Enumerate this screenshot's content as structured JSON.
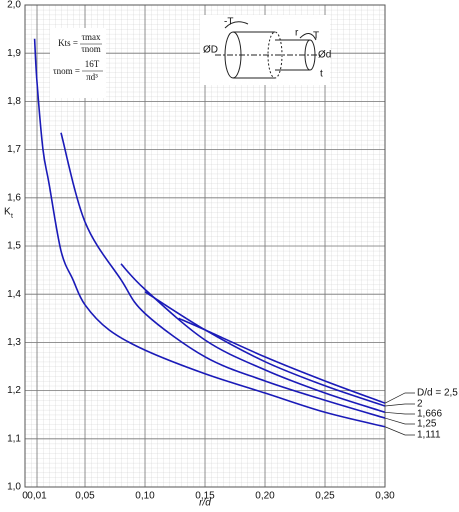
{
  "chart_data": {
    "type": "line",
    "x_label": "r/d",
    "y_label": "K",
    "y_label_sub": "t",
    "formula": {
      "lhs1": "Kts =",
      "num1": "τmax",
      "den1": "τnom",
      "lhs2": "τnom =",
      "num2": "16T",
      "den2": "πd³"
    },
    "diagram_labels": {
      "minus_t": "-T",
      "r": "r",
      "t_torque": "T",
      "big_d": "ØD",
      "small_d": "Ød",
      "t": "t"
    },
    "xlim": [
      0,
      0.3
    ],
    "ylim": [
      1.0,
      2.0
    ],
    "xticks": [
      0,
      {
        "value": 0.01,
        "label": "0,01"
      },
      {
        "value": 0.05,
        "label": "0,05"
      },
      {
        "value": 0.1,
        "label": "0,10"
      },
      {
        "value": 0.15,
        "label": "0,15"
      },
      {
        "value": 0.2,
        "label": "0,20"
      },
      {
        "value": 0.25,
        "label": "0,25"
      },
      {
        "value": 0.3,
        "label": "0,30"
      }
    ],
    "yticks": [
      {
        "value": 1.0,
        "label": "1,0"
      },
      {
        "value": 1.1,
        "label": "1,1"
      },
      {
        "value": 1.2,
        "label": "1,2"
      },
      {
        "value": 1.3,
        "label": "1,3"
      },
      {
        "value": 1.4,
        "label": "1,4"
      },
      {
        "value": 1.5,
        "label": "1,5"
      },
      {
        "value": 1.6,
        "label": "1,6"
      },
      {
        "value": 1.7,
        "label": "1,7"
      },
      {
        "value": 1.8,
        "label": "1,8"
      },
      {
        "value": 1.9,
        "label": "1,9"
      },
      {
        "value": 2.0,
        "label": "2,0"
      }
    ],
    "grid": true,
    "minor_grid": true,
    "series": [
      {
        "name": "D/d = 2,5",
        "color": "#1a1ab8",
        "x": [
          0.128,
          0.15,
          0.2,
          0.25,
          0.3
        ],
        "values": [
          1.35,
          1.326,
          1.27,
          1.22,
          1.174
        ]
      },
      {
        "name": "2",
        "color": "#1a1ab8",
        "x": [
          0.1,
          0.15,
          0.2,
          0.25,
          0.3
        ],
        "values": [
          1.405,
          1.326,
          1.26,
          1.21,
          1.168
        ]
      },
      {
        "name": "1,666",
        "color": "#1a1ab8",
        "x": [
          0.08,
          0.1,
          0.15,
          0.2,
          0.25,
          0.3
        ],
        "values": [
          1.463,
          1.41,
          1.305,
          1.243,
          1.195,
          1.155
        ]
      },
      {
        "name": "1,25",
        "color": "#1a1ab8",
        "x": [
          0.03,
          0.05,
          0.08,
          0.1,
          0.15,
          0.2,
          0.25,
          0.3
        ],
        "values": [
          1.735,
          1.55,
          1.43,
          1.36,
          1.27,
          1.22,
          1.18,
          1.143
        ]
      },
      {
        "name": "1,111",
        "color": "#1a1ab8",
        "x": [
          0.008,
          0.01,
          0.015,
          0.02,
          0.03,
          0.04,
          0.05,
          0.07,
          0.1,
          0.15,
          0.2,
          0.25,
          0.3
        ],
        "values": [
          1.93,
          1.84,
          1.7,
          1.63,
          1.49,
          1.43,
          1.378,
          1.326,
          1.284,
          1.235,
          1.195,
          1.155,
          1.125
        ]
      }
    ]
  }
}
